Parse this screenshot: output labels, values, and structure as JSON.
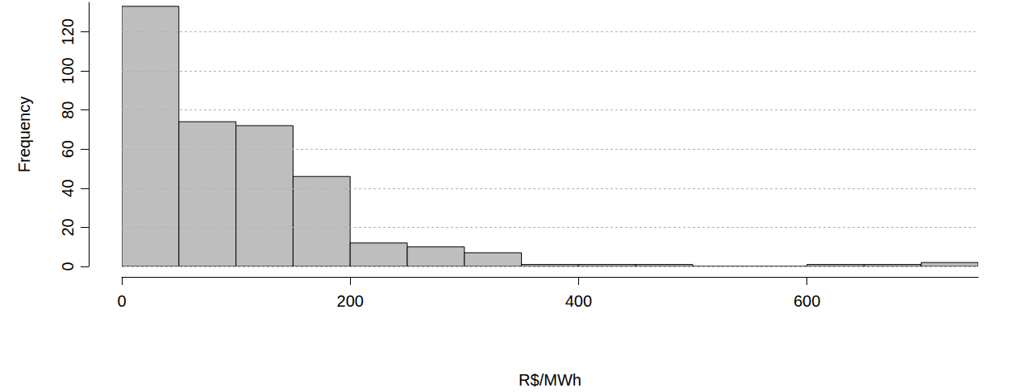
{
  "chart_data": {
    "type": "histogram",
    "x_label": "R$/MWh",
    "y_label": "Frequency",
    "bins": [
      0,
      50,
      100,
      150,
      200,
      250,
      300,
      350,
      400,
      450,
      500,
      550,
      600,
      650,
      700,
      750
    ],
    "values": [
      133,
      74,
      72,
      46,
      12,
      10,
      7,
      1,
      1,
      1,
      0,
      0,
      1,
      1,
      2
    ],
    "color": "#bebebe",
    "xlim": [
      0,
      750
    ],
    "xticks": [
      0,
      200,
      400,
      600
    ],
    "ylim": [
      0,
      135
    ],
    "yticks": [
      0,
      20,
      40,
      60,
      80,
      100,
      120
    ],
    "grid": true
  }
}
